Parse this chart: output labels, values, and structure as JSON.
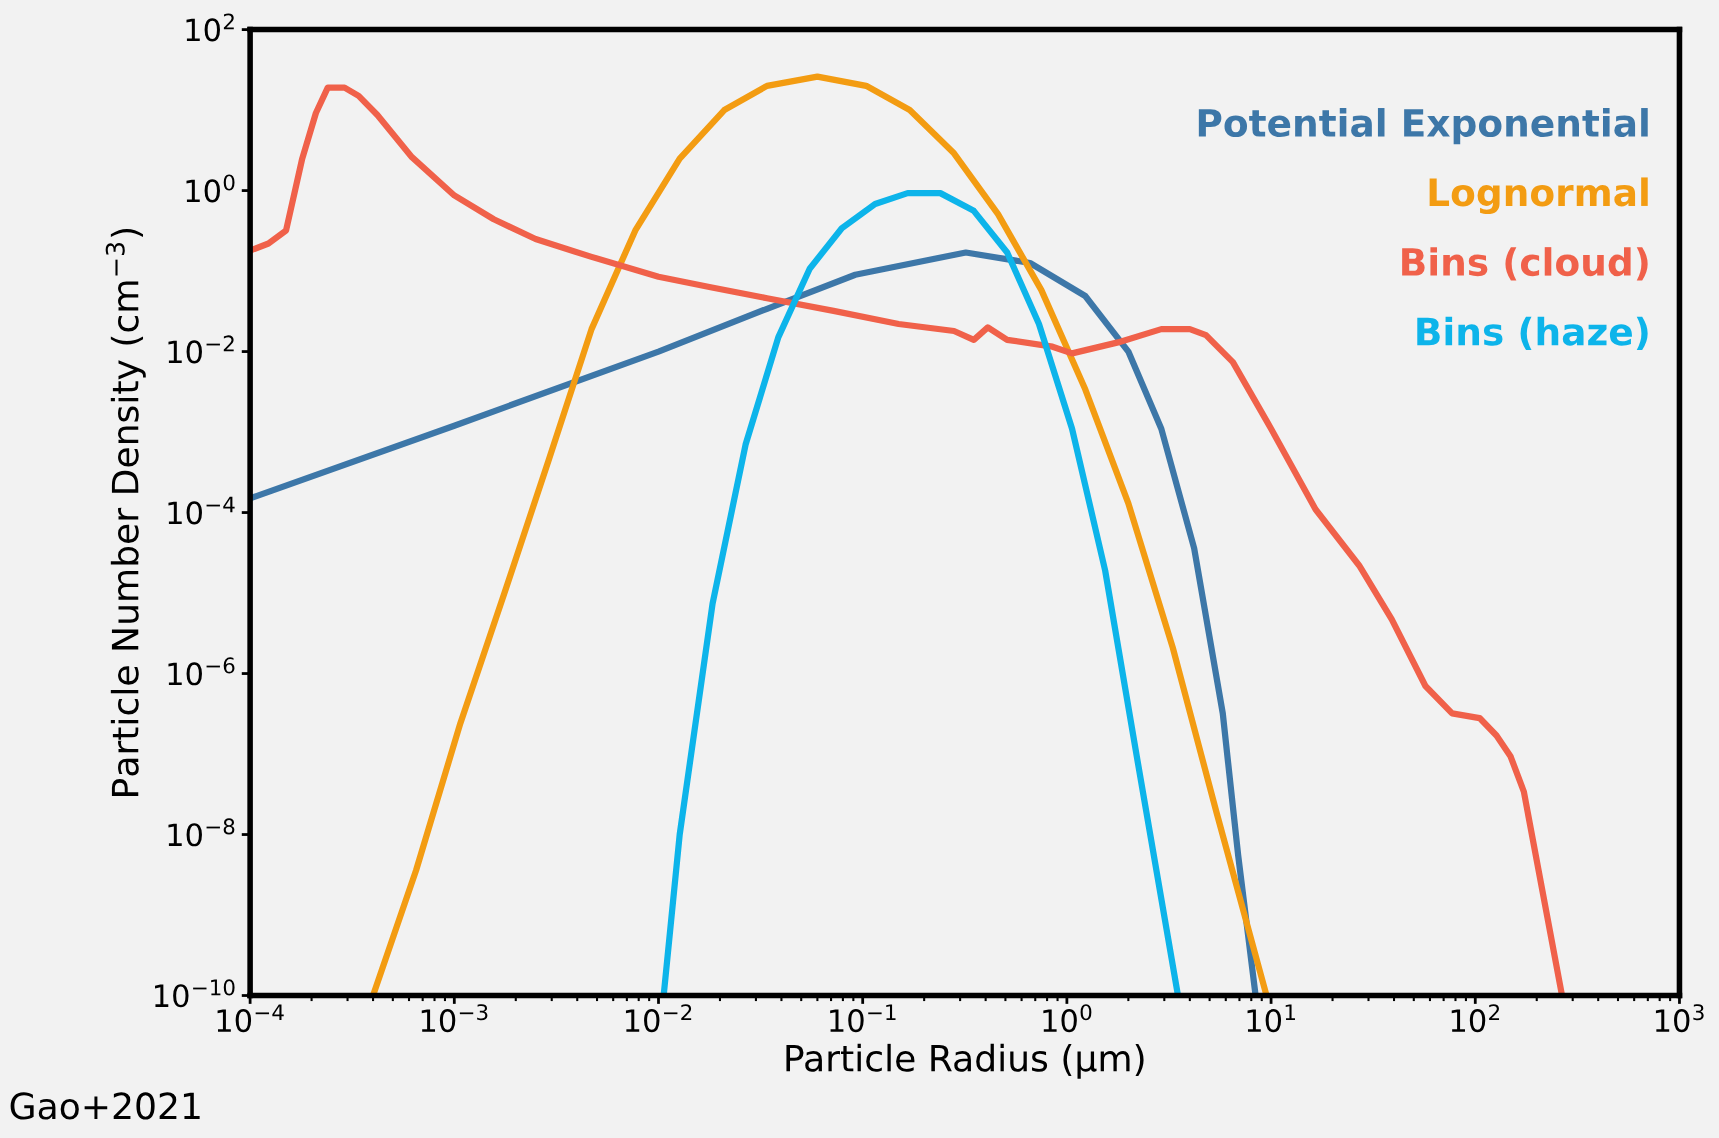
{
  "chart_data": {
    "type": "line",
    "xlabel": "Particle Radius (μm)",
    "ylabel": "Particle Number Density (cm$^{−3}$)",
    "log": "xy",
    "grid": false,
    "legend": "top right",
    "marker": "none",
    "line_style": "solid",
    "xlim": [
      0.0001,
      1000
    ],
    "ylim": [
      1e-10,
      100
    ],
    "xticks": [
      {
        "value": 0.0001,
        "label": "10$^{−4}$"
      },
      {
        "value": 0.001,
        "label": "10$^{−3}$"
      },
      {
        "value": 0.01,
        "label": "10$^{−2}$"
      },
      {
        "value": 0.1,
        "label": "10$^{−1}$"
      },
      {
        "value": 1,
        "label": "10$^{0}$"
      },
      {
        "value": 10,
        "label": "10$^{1}$"
      },
      {
        "value": 100,
        "label": "10$^{2}$"
      },
      {
        "value": 1000,
        "label": "10$^{3}$"
      }
    ],
    "yticks": [
      {
        "value": 1e-10,
        "label": "10$^{−10}$"
      },
      {
        "value": 1e-08,
        "label": "10$^{−8}$"
      },
      {
        "value": 1e-06,
        "label": "10$^{−6}$"
      },
      {
        "value": 0.0001,
        "label": "10$^{−4}$"
      },
      {
        "value": 0.01,
        "label": "10$^{−2}$"
      },
      {
        "value": 1,
        "label": "10$^{0}$"
      },
      {
        "value": 100,
        "label": "10$^{2}$"
      }
    ],
    "annotations": [
      "Gao+2021"
    ],
    "series": [
      {
        "name": "Potential Exponential",
        "color": "#3d77a8",
        "x": [
          0.0001,
          0.001,
          0.01,
          0.034,
          0.092,
          0.32,
          0.66,
          1.23,
          2.0,
          2.9,
          4.2,
          5.8,
          6.9,
          8.4
        ],
        "values": [
          0.00015,
          0.0012,
          0.01,
          0.034,
          0.09,
          0.17,
          0.126,
          0.049,
          0.01,
          0.0011,
          3.6e-05,
          3.2e-07,
          5.5e-09,
          1e-10
        ]
      },
      {
        "name": "Lognormal",
        "color": "#f39c12",
        "x": [
          0.0004,
          0.00065,
          0.00107,
          0.00176,
          0.0029,
          0.0047,
          0.0077,
          0.0127,
          0.021,
          0.034,
          0.06,
          0.104,
          0.17,
          0.28,
          0.46,
          0.75,
          1.23,
          2.0,
          3.3,
          5.4,
          9.5
        ],
        "values": [
          1e-10,
          3.6e-09,
          2.4e-07,
          1e-05,
          0.00045,
          0.019,
          0.32,
          2.5,
          10,
          20,
          26,
          20,
          10,
          2.9,
          0.51,
          0.058,
          0.0034,
          0.00013,
          2.1e-06,
          1.9e-08,
          1e-10
        ]
      },
      {
        "name": "Bins (cloud)",
        "color": "#f0614a",
        "x": [
          0.0001,
          0.000123,
          0.00015,
          0.00018,
          0.00021,
          0.00024,
          0.00029,
          0.00034,
          0.00042,
          0.00062,
          0.001,
          0.00156,
          0.0025,
          0.0047,
          0.01,
          0.018,
          0.034,
          0.072,
          0.15,
          0.28,
          0.35,
          0.41,
          0.51,
          0.85,
          1.06,
          1.78,
          2.9,
          4.0,
          4.8,
          6.5,
          10,
          16.5,
          27,
          39,
          57,
          77,
          105,
          127,
          149,
          173,
          266
        ],
        "values": [
          0.18,
          0.22,
          0.32,
          2.5,
          9.2,
          19,
          19,
          15,
          8.7,
          2.6,
          0.87,
          0.44,
          0.25,
          0.15,
          0.085,
          0.063,
          0.046,
          0.032,
          0.022,
          0.018,
          0.014,
          0.02,
          0.014,
          0.0115,
          0.0095,
          0.013,
          0.019,
          0.019,
          0.016,
          0.0074,
          0.0011,
          0.00011,
          2.2e-05,
          4.7e-06,
          7e-07,
          3.2e-07,
          2.8e-07,
          1.7e-07,
          9.3e-08,
          3.4e-08,
          1e-10
        ]
      },
      {
        "name": "Bins (haze)",
        "color": "#0db4ea",
        "x": [
          0.0106,
          0.0127,
          0.0184,
          0.0267,
          0.0386,
          0.055,
          0.079,
          0.115,
          0.166,
          0.24,
          0.35,
          0.51,
          0.73,
          1.06,
          1.54,
          2.2,
          3.5
        ],
        "values": [
          1e-10,
          1e-08,
          7.4e-06,
          0.0007,
          0.015,
          0.107,
          0.34,
          0.68,
          0.93,
          0.93,
          0.56,
          0.17,
          0.022,
          0.0011,
          1.9e-05,
          9.3e-08,
          1e-10
        ]
      }
    ]
  }
}
